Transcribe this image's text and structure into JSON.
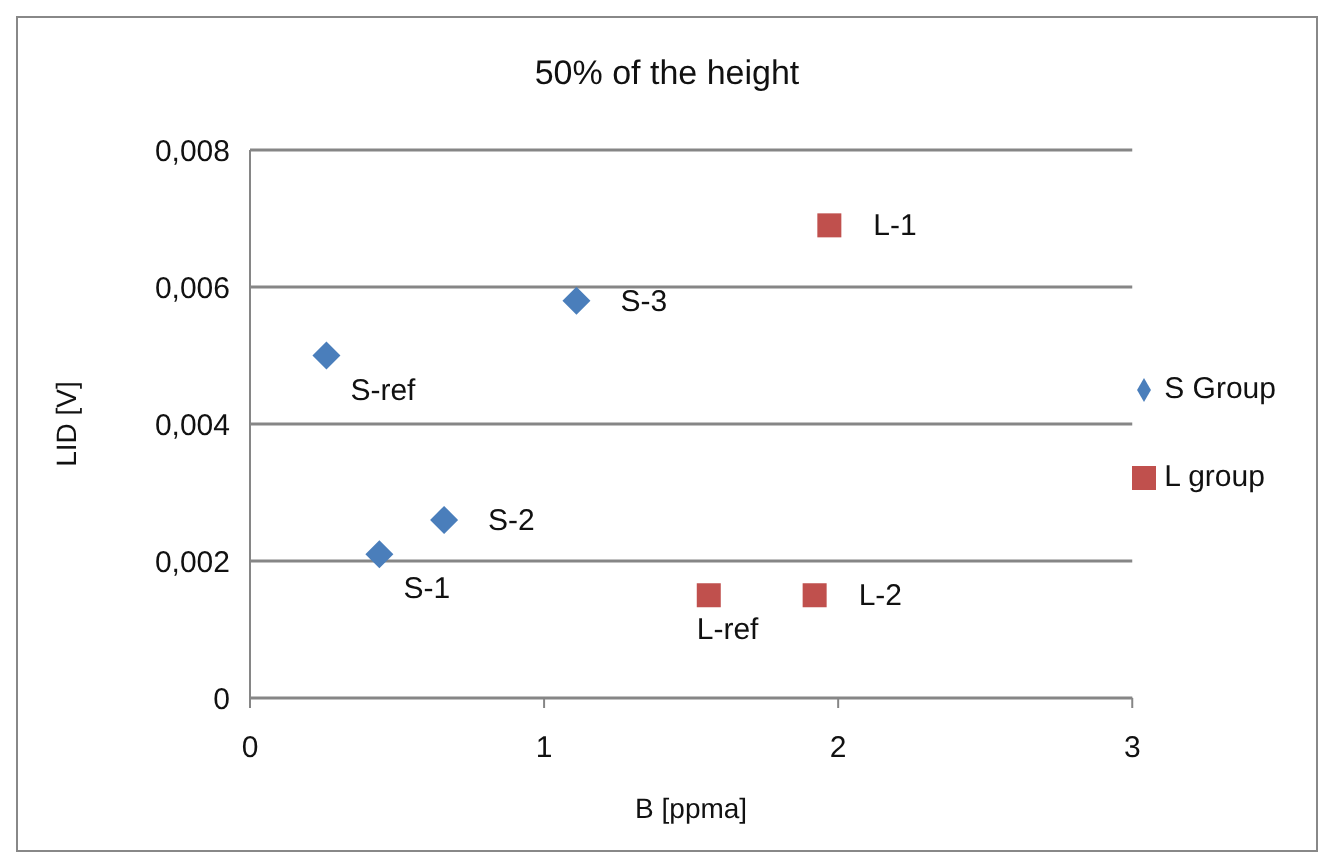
{
  "chart_data": {
    "type": "scatter",
    "title": "50% of the height",
    "xlabel": "B [ppma]",
    "ylabel": "LID [V]",
    "xlim": [
      0,
      3
    ],
    "xticks": [
      0,
      1,
      2,
      3
    ],
    "ylim": [
      0,
      0.008
    ],
    "yticks": [
      0,
      {
        "value": 0.002,
        "label": "0,002"
      },
      {
        "value": 0.004,
        "label": "0,004"
      },
      {
        "value": 0.006,
        "label": "0,006"
      },
      {
        "value": 0.008,
        "label": "0,008"
      }
    ],
    "grid": "y",
    "legend": "right",
    "series": [
      {
        "name": "S Group",
        "color": "#4a7ebb",
        "marker": "diamond",
        "x": [
          0.26,
          0.44,
          0.66,
          1.11
        ],
        "values": [
          0.005,
          0.0021,
          0.0026,
          0.0058
        ]
      },
      {
        "name": "L group",
        "color": "#c0504d",
        "marker": "square",
        "x": [
          1.56,
          1.92,
          1.97
        ],
        "values": [
          0.0015,
          0.0015,
          0.0069
        ]
      }
    ],
    "annotations": [
      {
        "text": "S-ref",
        "x": 0.26,
        "y": 0.005
      },
      {
        "text": "S-1",
        "x": 0.44,
        "y": 0.0021
      },
      {
        "text": "S-2",
        "x": 0.66,
        "y": 0.0026
      },
      {
        "text": "S-3",
        "x": 1.11,
        "y": 0.0058
      },
      {
        "text": "L-ref",
        "x": 1.56,
        "y": 0.0015
      },
      {
        "text": "L-2",
        "x": 1.92,
        "y": 0.0015
      },
      {
        "text": "L-1",
        "x": 1.97,
        "y": 0.0069
      }
    ]
  }
}
